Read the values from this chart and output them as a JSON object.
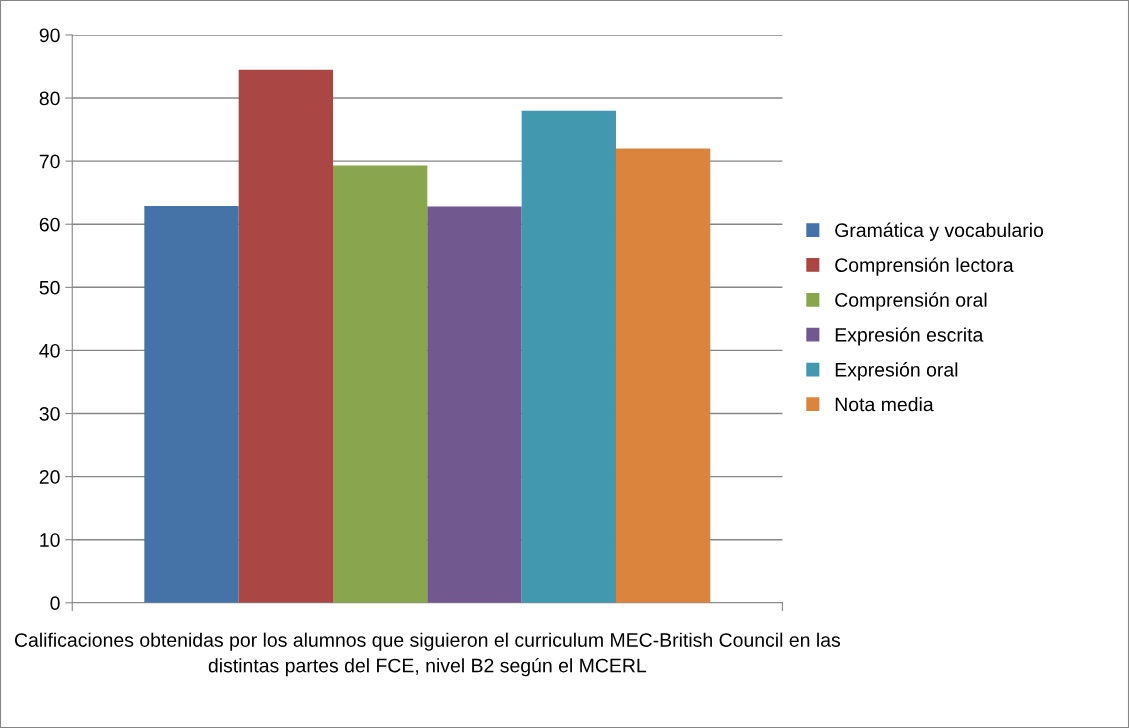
{
  "chart_data": {
    "type": "bar",
    "xlabel": "Calificaciones obtenidas por los alumnos que siguieron el curriculum MEC-British Council en las distintas partes del FCE, nivel B2 según el MCERL",
    "categories": [
      null
    ],
    "series": [
      {
        "name": "Gramática y vocabulario",
        "color": "#4572a7",
        "values": [
          62.9
        ]
      },
      {
        "name": "Comprensión lectora",
        "color": "#aa4643",
        "values": [
          84.5
        ]
      },
      {
        "name": "Comprensión oral",
        "color": "#89a54e",
        "values": [
          69.3
        ]
      },
      {
        "name": "Expresión escrita",
        "color": "#71588f",
        "values": [
          62.8
        ]
      },
      {
        "name": "Expresión oral",
        "color": "#4198af",
        "values": [
          78.0
        ]
      },
      {
        "name": "Nota media",
        "color": "#db843d",
        "values": [
          72.0
        ]
      }
    ],
    "ylim": [
      0,
      90
    ],
    "yticks": [
      0,
      10,
      20,
      30,
      40,
      50,
      60,
      70,
      80,
      90
    ],
    "grid": "y",
    "legend": "right"
  }
}
